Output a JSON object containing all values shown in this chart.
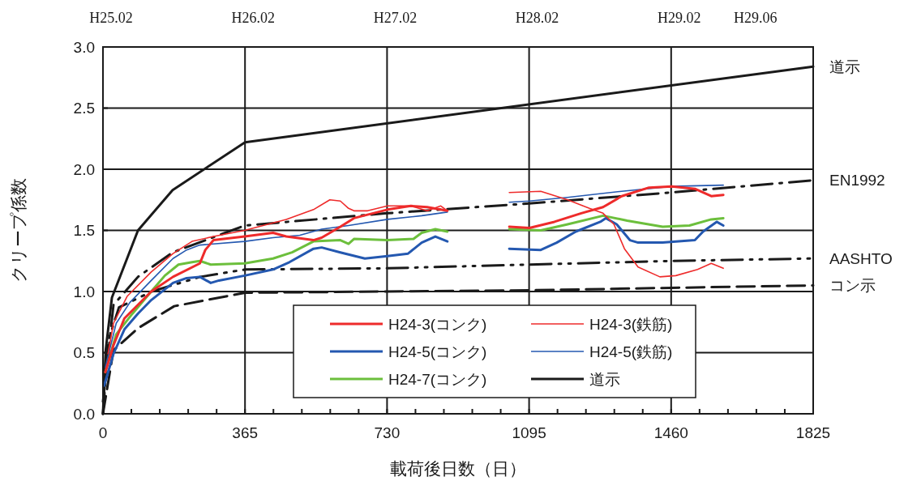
{
  "chart_data": {
    "type": "line",
    "xlabel": "載荷後日数（日）",
    "ylabel": "クリープ係数",
    "xlim": [
      0,
      1825
    ],
    "ylim": [
      0,
      3.0
    ],
    "xticks": [
      0,
      {
        "value": 73,
        "label": null
      },
      {
        "value": 146,
        "label": null
      },
      {
        "value": 219,
        "label": null
      },
      {
        "value": 292,
        "label": null
      },
      365,
      {
        "value": 438,
        "label": null
      },
      {
        "value": 511,
        "label": null
      },
      {
        "value": 584,
        "label": null
      },
      {
        "value": 657,
        "label": null
      },
      730,
      {
        "value": 803,
        "label": null
      },
      {
        "value": 876,
        "label": null
      },
      {
        "value": 949,
        "label": null
      },
      {
        "value": 1022,
        "label": null
      },
      1095,
      {
        "value": 1168,
        "label": null
      },
      {
        "value": 1241,
        "label": null
      },
      {
        "value": 1314,
        "label": null
      },
      {
        "value": 1387,
        "label": null
      },
      1460,
      {
        "value": 1533,
        "label": null
      },
      {
        "value": 1606,
        "label": null
      },
      {
        "value": 1679,
        "label": null
      },
      {
        "value": 1752,
        "label": null
      },
      1825
    ],
    "yticks": [
      {
        "value": 0,
        "label": "0.0"
      },
      {
        "value": 0.5,
        "label": "0.5"
      },
      {
        "value": 1.0,
        "label": "1.0"
      },
      {
        "value": 1.5,
        "label": "1.5"
      },
      {
        "value": 2.0,
        "label": "2.0"
      },
      {
        "value": 2.5,
        "label": "2.5"
      },
      {
        "value": 3.0,
        "label": "3.0"
      }
    ],
    "annotations": [
      "H25.02",
      "H26.02",
      "H27.02",
      "H28.02",
      "H29.02",
      "H29.06"
    ],
    "grid": true,
    "legend": "bottom",
    "series": [
      {
        "name": "H24-3(コンク)",
        "color": "#ee2b2b",
        "line_style": "solid",
        "x": [
          6,
          27,
          55,
          124,
          180,
          249,
          263,
          284,
          364,
          437,
          471,
          541,
          562,
          610,
          645,
          731,
          791,
          833,
          885,
          965,
          1044,
          1096,
          1160,
          1229,
          1285,
          1333,
          1403,
          1462,
          1521,
          1563,
          1594
        ],
        "values": [
          0.34,
          0.56,
          0.78,
          1.0,
          1.12,
          1.23,
          1.34,
          1.42,
          1.45,
          1.48,
          1.45,
          1.42,
          1.44,
          1.53,
          1.6,
          1.67,
          1.7,
          1.69,
          1.66,
          null,
          1.53,
          1.52,
          1.57,
          1.64,
          1.69,
          1.78,
          1.85,
          1.86,
          1.84,
          1.78,
          1.79
        ]
      },
      {
        "name": "H24-3(鉄筋)",
        "color": "#ee2b2b",
        "line_style": "solid",
        "x": [
          13,
          27,
          62,
          124,
          180,
          229,
          284,
          364,
          471,
          541,
          583,
          610,
          631,
          645,
          680,
          731,
          791,
          833,
          868,
          885,
          965,
          1044,
          1125,
          1194,
          1250,
          1285,
          1313,
          1340,
          1375,
          1431,
          1472,
          1528,
          1563,
          1594
        ],
        "values": [
          0.49,
          0.74,
          0.96,
          1.16,
          1.31,
          1.41,
          1.45,
          1.5,
          1.59,
          1.67,
          1.75,
          1.74,
          1.68,
          1.66,
          1.66,
          1.7,
          1.7,
          1.66,
          1.7,
          1.66,
          null,
          1.81,
          1.82,
          1.75,
          1.68,
          1.64,
          1.55,
          1.35,
          1.2,
          1.12,
          1.13,
          1.18,
          1.23,
          1.19
        ]
      },
      {
        "name": "H24-5(コンク)",
        "color": "#2458b0",
        "line_style": "solid",
        "x": [
          3,
          27,
          55,
          90,
          124,
          180,
          215,
          249,
          277,
          298,
          364,
          437,
          479,
          541,
          562,
          610,
          673,
          731,
          784,
          819,
          854,
          885,
          965,
          1044,
          1125,
          1166,
          1215,
          1278,
          1292,
          1320,
          1354,
          1375,
          1438,
          1521,
          1542,
          1577,
          1594
        ],
        "values": [
          0.23,
          0.49,
          0.69,
          0.82,
          0.93,
          1.07,
          1.11,
          1.12,
          1.07,
          1.09,
          1.13,
          1.18,
          1.24,
          1.35,
          1.36,
          1.32,
          1.27,
          1.29,
          1.31,
          1.4,
          1.45,
          1.41,
          null,
          1.35,
          1.34,
          1.4,
          1.49,
          1.57,
          1.6,
          1.55,
          1.42,
          1.4,
          1.4,
          1.42,
          1.49,
          1.57,
          1.54
        ]
      },
      {
        "name": "H24-5(鉄筋)",
        "color": "#2458b0",
        "line_style": "solid",
        "x": [
          6,
          34,
          69,
          124,
          180,
          215,
          249,
          364,
          437,
          506,
          562,
          631,
          731,
          819,
          885,
          965,
          1044,
          1096,
          1194,
          1333,
          1462,
          1594
        ],
        "values": [
          0.38,
          0.74,
          0.91,
          1.09,
          1.27,
          1.34,
          1.38,
          1.41,
          1.44,
          1.46,
          1.51,
          1.54,
          1.59,
          1.62,
          1.65,
          null,
          1.73,
          1.74,
          1.77,
          1.82,
          1.86,
          1.87
        ]
      },
      {
        "name": "H24-7(コンク)",
        "color": "#6cbf3c",
        "line_style": "solid",
        "x": [
          6,
          34,
          76,
          124,
          159,
          194,
          229,
          249,
          277,
          364,
          437,
          486,
          541,
          610,
          631,
          645,
          731,
          798,
          819,
          854,
          885,
          965,
          1044,
          1125,
          1194,
          1285,
          1347,
          1438,
          1507,
          1563,
          1594
        ],
        "values": [
          0.34,
          0.65,
          0.82,
          1.0,
          1.13,
          1.22,
          1.24,
          1.25,
          1.22,
          1.23,
          1.27,
          1.32,
          1.41,
          1.42,
          1.39,
          1.43,
          1.42,
          1.43,
          1.48,
          1.51,
          1.49,
          null,
          1.51,
          1.5,
          1.55,
          1.62,
          1.58,
          1.53,
          1.54,
          1.59,
          1.6
        ]
      },
      {
        "name": "道示",
        "color": "#1a1a1a",
        "line_style": "solid",
        "x": [
          0,
          7,
          23,
          90,
          179,
          365,
          1825
        ],
        "values": [
          0,
          0.52,
          0.95,
          1.5,
          1.83,
          2.22,
          2.84
        ]
      },
      {
        "name": "EN1992",
        "color": "#1a1a1a",
        "line_style": "dashdot",
        "x": [
          0,
          27,
          90,
          179,
          365,
          730,
          1095,
          1460,
          1825
        ],
        "values": [
          0.1,
          0.89,
          1.12,
          1.32,
          1.54,
          1.64,
          1.72,
          1.81,
          1.91
        ]
      },
      {
        "name": "AASHTO",
        "color": "#1a1a1a",
        "line_style": "dashdotdot",
        "x": [
          0,
          14,
          41,
          125,
          250,
          365,
          730,
          1095,
          1460,
          1825
        ],
        "values": [
          0,
          0.6,
          0.87,
          1.0,
          1.12,
          1.18,
          1.19,
          1.22,
          1.25,
          1.27
        ]
      },
      {
        "name": "コン示",
        "color": "#1a1a1a",
        "line_style": "dashed",
        "x": [
          0,
          27,
          90,
          183,
          365,
          730,
          1095,
          1460,
          1825
        ],
        "values": [
          0,
          0.52,
          0.7,
          0.88,
          0.99,
          1.0,
          1.01,
          1.03,
          1.05
        ]
      }
    ]
  }
}
